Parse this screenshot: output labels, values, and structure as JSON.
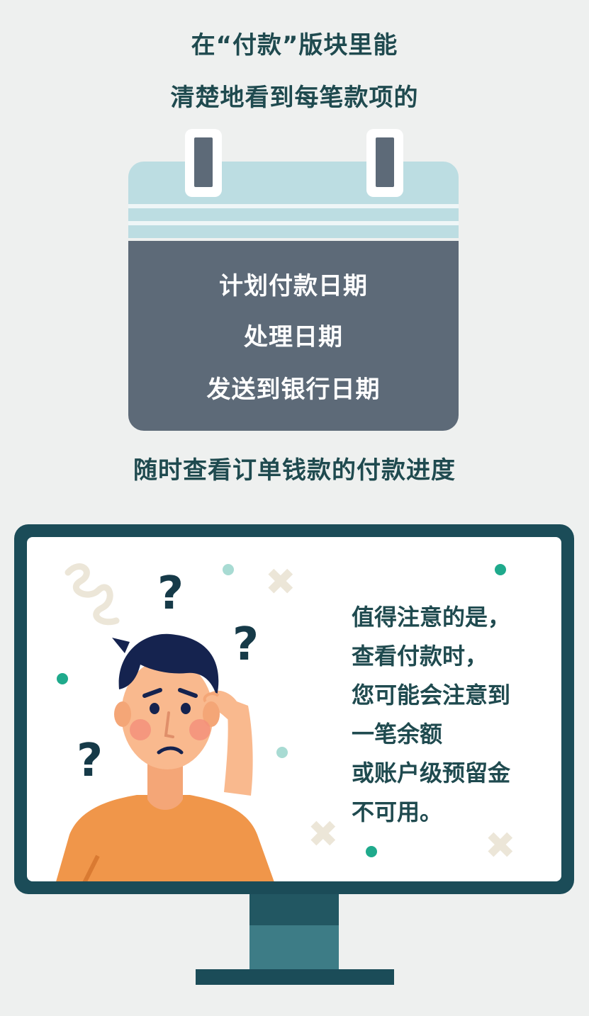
{
  "header": {
    "line1": "在“付款”版块里能",
    "line2": "清楚地看到每笔款项的"
  },
  "calendar": {
    "items": [
      "计划付款日期",
      "处理日期",
      "发送到银行日期"
    ]
  },
  "subheading": "随时查看订单钱款的付款进度",
  "monitor": {
    "note_lines": [
      "值得注意的是，",
      "查看付款时，",
      "您可能会注意到",
      "一笔余额",
      "或账户级预留金",
      "不可用。"
    ],
    "question_mark": "?",
    "cross_mark": "✖"
  },
  "colors": {
    "background": "#eef0ef",
    "heading": "#1f4a4f",
    "calendar_header": "#bcdde2",
    "calendar_body": "#5d6a78",
    "monitor_frame": "#1b4c58",
    "accent_dot": "#1faa8c",
    "shirt": "#f0964a",
    "skin": "#f9b98e",
    "hair": "#15234f"
  },
  "icons": [
    "calendar-icon",
    "question-mark-icon",
    "cross-icon",
    "swirl-icon",
    "confused-person-illustration"
  ]
}
